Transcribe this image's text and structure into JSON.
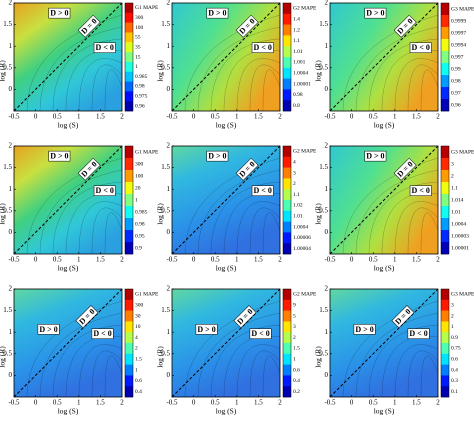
{
  "chart_data": [
    {
      "type": "contour",
      "colorbar_label": "G1 MAPE",
      "xlabel": "log (S)",
      "ylabel": "log (R)",
      "annotations": [
        "D > 0",
        "D = 0",
        "D < 0"
      ],
      "levels": [
        500,
        300,
        100,
        55,
        35,
        15,
        1,
        0.985,
        0.98,
        0.975,
        0.96
      ],
      "xlim": [
        -0.5,
        2
      ],
      "xticks": [
        -0.5,
        0,
        0.5,
        1,
        1.5,
        2
      ],
      "ylim": [
        -0.5,
        2
      ],
      "yticks": [
        0,
        0.5,
        1,
        1.5,
        2
      ]
    },
    {
      "type": "contour",
      "colorbar_label": "G2 MAPE",
      "xlabel": "log (S)",
      "ylabel": "log (R)",
      "annotations": [
        "D > 0",
        "D = 0",
        "D < 0"
      ],
      "levels": [
        1.6,
        1.4,
        1.2,
        1.1,
        1.01,
        1.001,
        1.0004,
        1.00001,
        0.98,
        0.8
      ],
      "xlim": [
        -0.5,
        2
      ],
      "xticks": [
        -0.5,
        0,
        0.5,
        1,
        1.5,
        2
      ],
      "ylim": [
        -0.5,
        2
      ],
      "yticks": [
        0,
        0.5,
        1,
        1.5,
        2
      ]
    },
    {
      "type": "contour",
      "colorbar_label": "G3 MAPE",
      "xlabel": "log (S)",
      "ylabel": "log (R)",
      "annotations": [
        "D > 0",
        "D = 0",
        "D < 0"
      ],
      "levels": [
        1,
        0.9999,
        0.9997,
        0.9994,
        0.997,
        0.99,
        0.98,
        0.97,
        0.96
      ],
      "xlim": [
        -0.5,
        2
      ],
      "xticks": [
        -0.5,
        0,
        0.5,
        1,
        1.5,
        2
      ],
      "ylim": [
        -0.5,
        2
      ],
      "yticks": [
        0,
        0.5,
        1,
        1.5,
        2
      ]
    },
    {
      "type": "contour",
      "colorbar_label": "G1 MAPE",
      "xlabel": "log (S)",
      "ylabel": "log (R)",
      "annotations": [
        "D > 0",
        "D = 0",
        "D < 0"
      ],
      "levels": [
        500,
        300,
        100,
        20,
        1,
        0.985,
        0.98,
        0.95,
        0.9
      ],
      "xlim": [
        -0.5,
        2
      ],
      "xticks": [
        -0.5,
        0,
        0.5,
        1,
        1.5,
        2
      ],
      "ylim": [
        -0.5,
        2
      ],
      "yticks": [
        0,
        0.5,
        1,
        1.5,
        2
      ]
    },
    {
      "type": "contour",
      "colorbar_label": "G2 MAPE",
      "xlabel": "log (S)",
      "ylabel": "log (R)",
      "annotations": [
        "D > 0",
        "D = 0",
        "D < 0"
      ],
      "levels": [
        5,
        4,
        3,
        2,
        1.1,
        1.02,
        1.01,
        1.0004,
        1.00006,
        1.00004
      ],
      "xlim": [
        -0.5,
        2
      ],
      "xticks": [
        -0.5,
        0,
        0.5,
        1,
        1.5,
        2
      ],
      "ylim": [
        -0.5,
        2
      ],
      "yticks": [
        0,
        0.5,
        1,
        1.5,
        2
      ]
    },
    {
      "type": "contour",
      "colorbar_label": "G3 MAPE",
      "xlabel": "log (S)",
      "ylabel": "log (R)",
      "annotations": [
        "D > 0",
        "D = 0",
        "D < 0"
      ],
      "levels": [
        5,
        3,
        2,
        1.1,
        1.014,
        1.01,
        1.0004,
        1.00003,
        1.00001
      ],
      "xlim": [
        -0.5,
        2
      ],
      "xticks": [
        -0.5,
        0,
        0.5,
        1,
        1.5,
        2
      ],
      "ylim": [
        -0.5,
        2
      ],
      "yticks": [
        0,
        0.5,
        1,
        1.5,
        2
      ]
    },
    {
      "type": "contour",
      "colorbar_label": "G1 MAPE",
      "xlabel": "log (S)",
      "ylabel": "log (R)",
      "annotations": [
        "D > 0",
        "D = 0",
        "D < 0"
      ],
      "levels": [
        500,
        300,
        30,
        10,
        4,
        2,
        1.5,
        1,
        0.6,
        0.4
      ],
      "xlim": [
        -0.5,
        2
      ],
      "xticks": [
        -0.5,
        0,
        0.5,
        1,
        1.5,
        2
      ],
      "ylim": [
        -0.5,
        2
      ],
      "yticks": [
        0,
        0.5,
        1,
        1.5,
        2
      ]
    },
    {
      "type": "contour",
      "colorbar_label": "G2 MAPE",
      "xlabel": "log (S)",
      "ylabel": "log (R)",
      "annotations": [
        "D > 0",
        "D = 0",
        "D < 0"
      ],
      "levels": [
        10,
        9,
        5,
        3,
        2,
        1.5,
        1,
        0.6,
        0.4,
        0.2
      ],
      "xlim": [
        -0.5,
        2
      ],
      "xticks": [
        -0.5,
        0,
        0.5,
        1,
        1.5,
        2
      ],
      "ylim": [
        -0.5,
        2
      ],
      "yticks": [
        0,
        0.5,
        1,
        1.5,
        2
      ]
    },
    {
      "type": "contour",
      "colorbar_label": "G3 MAPE",
      "xlabel": "log (S)",
      "ylabel": "log (R)",
      "annotations": [
        "D > 0",
        "D = 0",
        "D < 0"
      ],
      "levels": [
        4.2,
        3,
        2,
        1,
        0.9,
        0.75,
        0.6,
        0.4,
        0.3,
        0.1
      ],
      "xlim": [
        -0.5,
        2
      ],
      "xticks": [
        -0.5,
        0,
        0.5,
        1,
        1.5,
        2
      ],
      "ylim": [
        -0.5,
        2
      ],
      "yticks": [
        0,
        0.5,
        1,
        1.5,
        2
      ]
    }
  ]
}
